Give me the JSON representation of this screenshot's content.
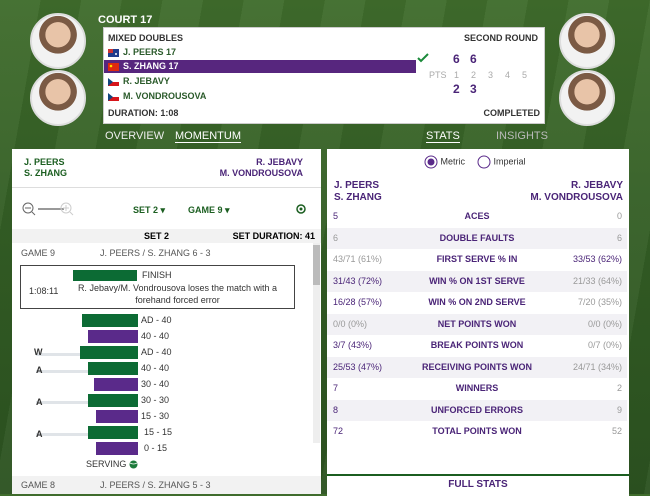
{
  "court": "COURT 17",
  "event": "MIXED DOUBLES",
  "round": "SECOND ROUND",
  "players": [
    {
      "name": "J. PEERS 17",
      "flag": "aus",
      "active": false
    },
    {
      "name": "S. ZHANG 17",
      "flag": "chn",
      "active": true
    },
    {
      "name": "R. JEBAVY",
      "flag": "cze",
      "active": false
    },
    {
      "name": "M. VONDROUSOVA",
      "flag": "cze",
      "active": false
    }
  ],
  "set_scores": {
    "team1": [
      "6",
      "6"
    ],
    "team2": [
      "2",
      "3"
    ]
  },
  "pts_label": "PTS",
  "set_numbers": [
    "1",
    "2",
    "3",
    "4",
    "5"
  ],
  "duration": "DURATION: 1:08",
  "status": "COMPLETED",
  "tabs": {
    "overview": "OVERVIEW",
    "momentum": "MOMENTUM",
    "stats": "STATS",
    "insights": "INSIGHTS"
  },
  "momentum": {
    "team1": [
      "J. PEERS",
      "S. ZHANG"
    ],
    "team2": [
      "R. JEBAVY",
      "M. VONDROUSOVA"
    ],
    "set_select": "SET 2",
    "game_select": "GAME 9",
    "set_label": "SET 2",
    "set_duration": "SET DURATION: 41",
    "game9": "GAME 9",
    "game9_score": "J. PEERS / S. ZHANG 6 - 3",
    "finish_time": "1:08:11",
    "finish_label": "FINISH",
    "finish_text": "R. Jebavy/M. Vondrousova loses the match with a forehand forced error",
    "points": [
      {
        "score": "AD - 40",
        "mark": ""
      },
      {
        "score": "40 - 40",
        "mark": ""
      },
      {
        "score": "AD - 40",
        "mark": "W"
      },
      {
        "score": "40 - 40",
        "mark": "A"
      },
      {
        "score": "30 - 40",
        "mark": ""
      },
      {
        "score": "30 - 30",
        "mark": "A"
      },
      {
        "score": "15 - 30",
        "mark": ""
      },
      {
        "score": "15 - 15",
        "mark": "A"
      },
      {
        "score": "0 - 15",
        "mark": ""
      }
    ],
    "serving": "SERVING",
    "game8": "GAME 8",
    "game8_score": "J. PEERS / S. ZHANG 5 - 3"
  },
  "stats": {
    "metric": "Metric",
    "imperial": "Imperial",
    "team1": [
      "J. PEERS",
      "S. ZHANG"
    ],
    "team2": [
      "R. JEBAVY",
      "M. VONDROUSOVA"
    ],
    "rows": [
      {
        "l": "5",
        "name": "ACES",
        "r": "0"
      },
      {
        "l": "6",
        "name": "DOUBLE FAULTS",
        "r": "6"
      },
      {
        "l": "43/71 (61%)",
        "name": "FIRST SERVE % IN",
        "r": "33/53 (62%)"
      },
      {
        "l": "31/43 (72%)",
        "name": "WIN % ON 1ST SERVE",
        "r": "21/33 (64%)"
      },
      {
        "l": "16/28 (57%)",
        "name": "WIN % ON 2ND SERVE",
        "r": "7/20 (35%)"
      },
      {
        "l": "0/0 (0%)",
        "name": "NET POINTS WON",
        "r": "0/0 (0%)"
      },
      {
        "l": "3/7 (43%)",
        "name": "BREAK POINTS WON",
        "r": "0/7 (0%)"
      },
      {
        "l": "25/53 (47%)",
        "name": "RECEIVING POINTS WON",
        "r": "24/71 (34%)"
      },
      {
        "l": "7",
        "name": "WINNERS",
        "r": "2"
      },
      {
        "l": "8",
        "name": "UNFORCED ERRORS",
        "r": "9"
      },
      {
        "l": "72",
        "name": "TOTAL POINTS WON",
        "r": "52"
      }
    ],
    "full_stats": "FULL STATS"
  },
  "colors": {
    "purple": "#4a2477",
    "green": "#0c6b34"
  }
}
